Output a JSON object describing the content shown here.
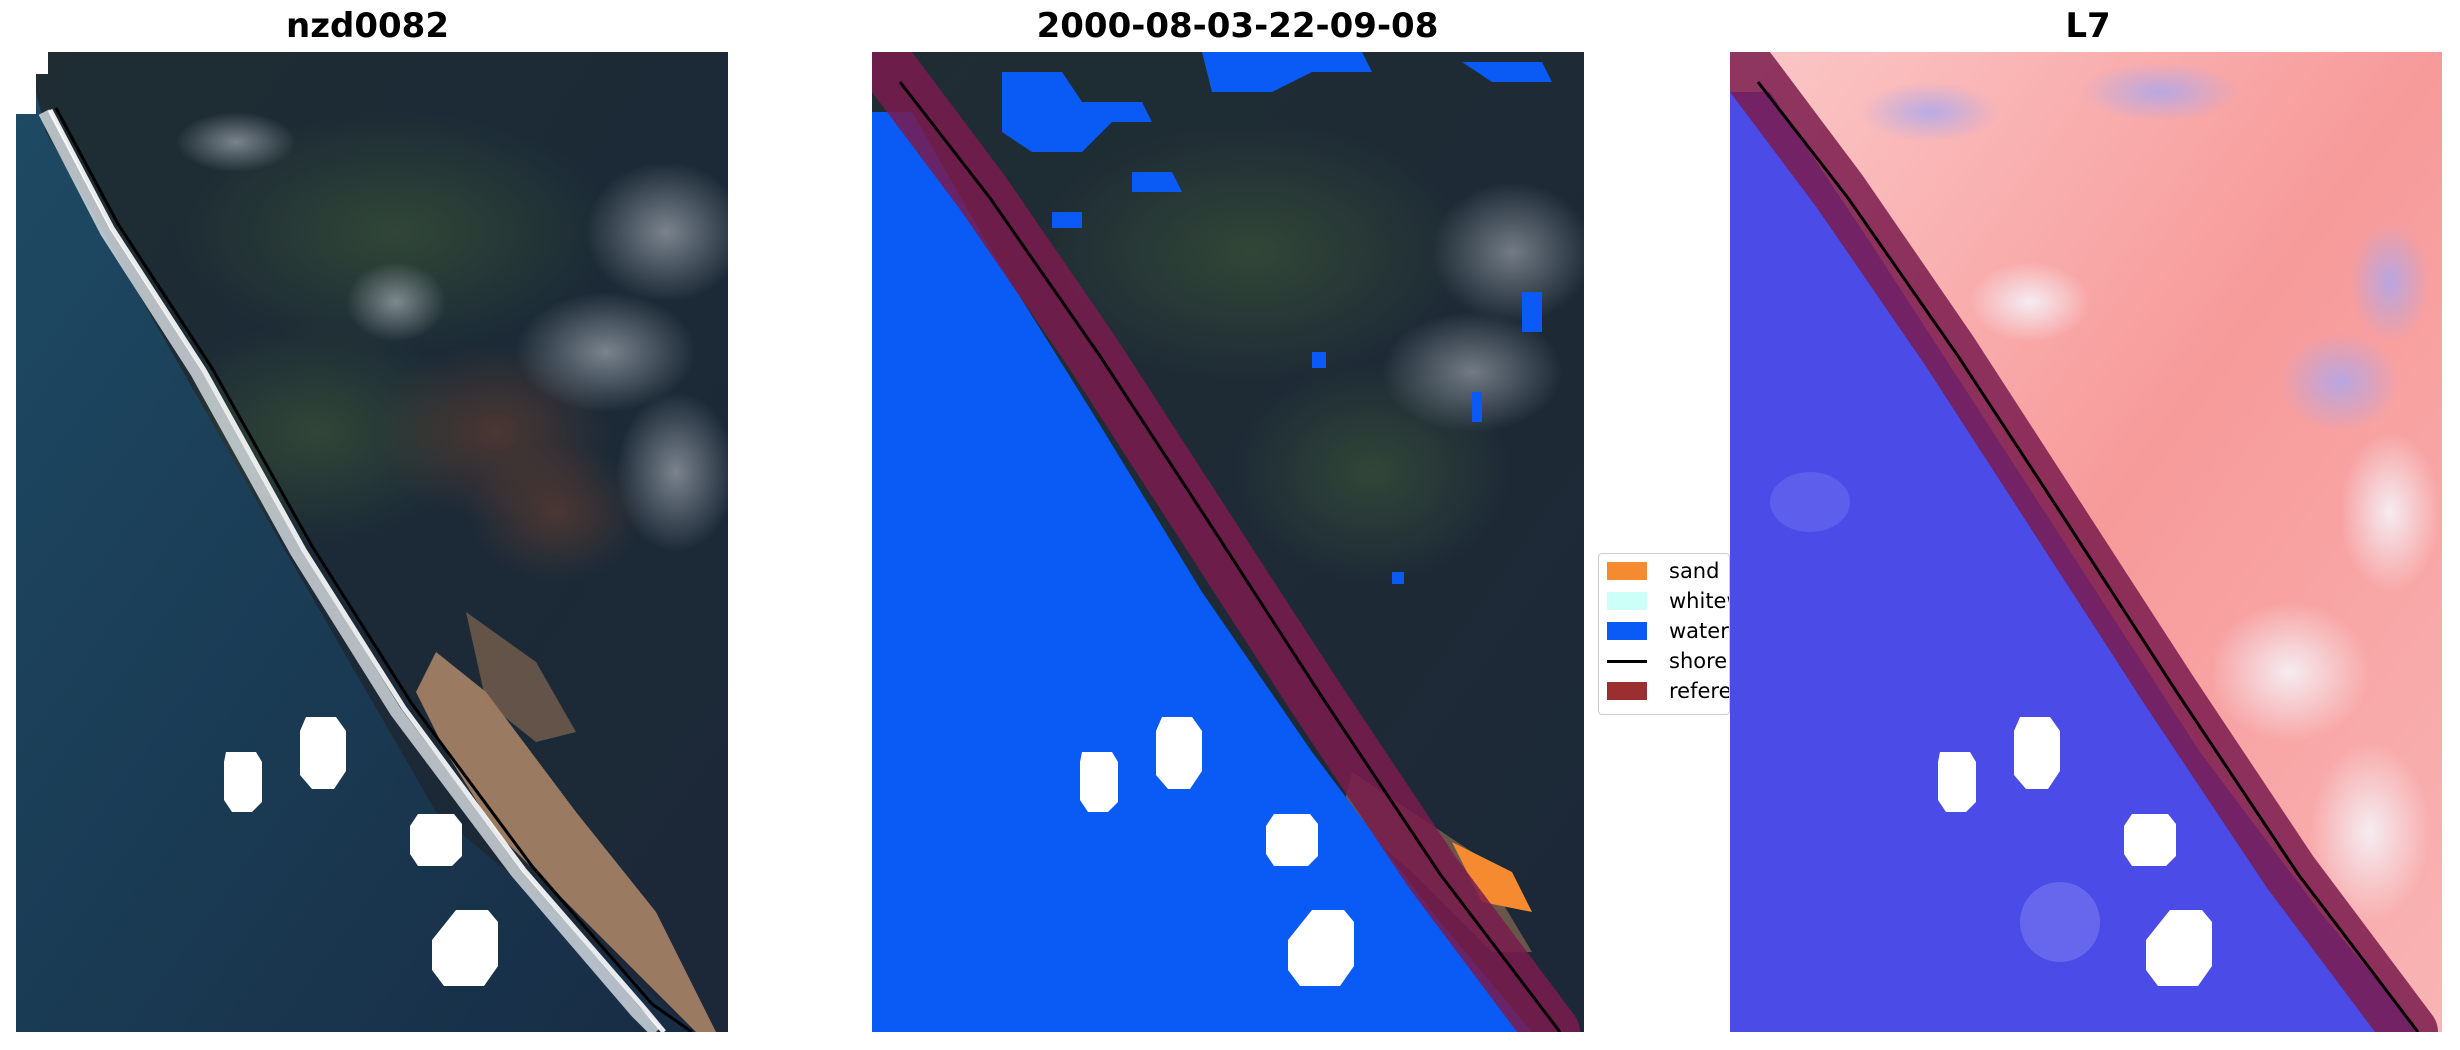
{
  "panels": [
    {
      "title": "nzd0082",
      "kind": "rgb-satellite-image"
    },
    {
      "title": "2000-08-03-22-09-08",
      "kind": "classified-image"
    },
    {
      "title": "L7",
      "kind": "water-index-image"
    }
  ],
  "legend": {
    "items": [
      {
        "label": "sand",
        "color": "#f58a30",
        "type": "patch"
      },
      {
        "label": "whitew",
        "color": "#ccfff8",
        "type": "patch"
      },
      {
        "label": "water",
        "color": "#0a5bf5",
        "type": "patch"
      },
      {
        "label": "shorel",
        "color": "#000000",
        "type": "line"
      },
      {
        "label": "referen",
        "color": "#9b2f2f",
        "type": "patch"
      }
    ]
  },
  "colors": {
    "sea_rgb": "#1d3550",
    "land_rgb": "#1c2a3a",
    "sand": "#b89270",
    "water_class": "#0a5bf5",
    "reference_buffer": "#7a1b4e",
    "index_land": "#f7a0a0",
    "index_water": "#4b4be8",
    "cloud_mask": "#ffffff"
  }
}
